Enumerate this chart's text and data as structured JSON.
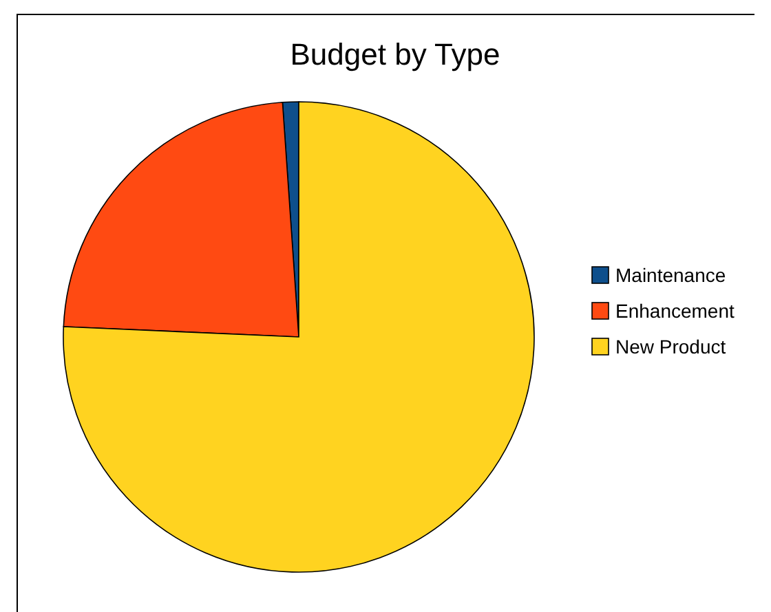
{
  "chart_data": {
    "type": "pie",
    "title": "Budget by Type",
    "categories": [
      "Maintenance",
      "Enhancement",
      "New Product"
    ],
    "values": [
      1.1,
      23.2,
      75.7
    ],
    "colors": [
      "#0e4f8c",
      "#ff4a12",
      "#ffd320"
    ],
    "legend": "right"
  }
}
